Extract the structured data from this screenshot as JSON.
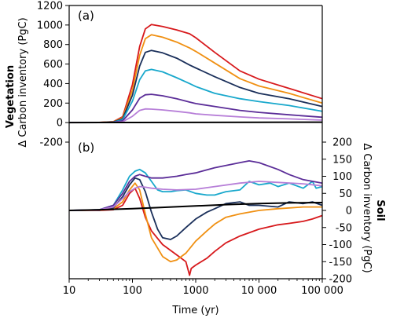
{
  "figure": {
    "xlabel": "Time (yr)",
    "x_tick_labels": [
      "10",
      "100",
      "1000",
      "10 000",
      "100 000"
    ],
    "panel_a_label": "(a)",
    "panel_b_label": "(b)",
    "left_axis_title_bold": "Vegetation",
    "left_axis_title": "Δ Carbon inventory (PgC)",
    "right_axis_title_bold": "Soil",
    "right_axis_title": "Δ Carbon inventory (PgC)",
    "left_tick_labels": [
      "1200",
      "1000",
      "800",
      "600",
      "400",
      "200",
      "0",
      "-200"
    ],
    "right_tick_labels": [
      "200",
      "150",
      "100",
      "50",
      "0",
      "-50",
      "-100",
      "-150",
      "-200"
    ]
  },
  "chart_data": [
    {
      "panel": "a",
      "type": "line",
      "xscale": "log",
      "xlim": [
        10,
        100000
      ],
      "ylim": [
        -200,
        1200
      ],
      "grid": false,
      "legend": "none",
      "series": [
        {
          "color": "#d7191c",
          "x": [
            10,
            30,
            50,
            70,
            100,
            130,
            160,
            200,
            300,
            500,
            800,
            1000,
            2000,
            5000,
            10000,
            30000,
            100000
          ],
          "y": [
            0,
            2,
            10,
            60,
            390,
            780,
            960,
            1005,
            985,
            950,
            910,
            870,
            720,
            530,
            445,
            350,
            245
          ]
        },
        {
          "color": "#f09012",
          "x": [
            10,
            30,
            50,
            70,
            100,
            130,
            160,
            200,
            300,
            500,
            800,
            1000,
            2000,
            5000,
            10000,
            30000,
            100000
          ],
          "y": [
            0,
            2,
            8,
            50,
            330,
            690,
            860,
            900,
            875,
            825,
            765,
            730,
            610,
            450,
            375,
            300,
            200
          ]
        },
        {
          "color": "#1a2f5a",
          "x": [
            10,
            30,
            50,
            70,
            100,
            130,
            160,
            200,
            300,
            500,
            800,
            1000,
            2000,
            5000,
            10000,
            30000,
            100000
          ],
          "y": [
            0,
            2,
            6,
            40,
            280,
            580,
            720,
            740,
            715,
            660,
            590,
            560,
            470,
            360,
            300,
            245,
            165
          ]
        },
        {
          "color": "#18a8cc",
          "x": [
            10,
            30,
            50,
            70,
            100,
            130,
            160,
            200,
            300,
            500,
            800,
            1000,
            2000,
            5000,
            10000,
            30000,
            100000
          ],
          "y": [
            0,
            1,
            4,
            30,
            220,
            440,
            530,
            545,
            520,
            460,
            400,
            370,
            300,
            245,
            215,
            175,
            115
          ]
        },
        {
          "color": "#5b2d98",
          "x": [
            10,
            30,
            50,
            70,
            100,
            130,
            160,
            200,
            300,
            500,
            800,
            1000,
            2000,
            5000,
            10000,
            30000,
            100000
          ],
          "y": [
            0,
            1,
            3,
            18,
            130,
            250,
            285,
            290,
            275,
            245,
            210,
            195,
            165,
            125,
            105,
            80,
            55
          ]
        },
        {
          "color": "#b77fd8",
          "x": [
            10,
            30,
            50,
            70,
            100,
            130,
            160,
            200,
            300,
            500,
            800,
            1000,
            2000,
            5000,
            10000,
            30000,
            100000
          ],
          "y": [
            0,
            0,
            2,
            8,
            65,
            125,
            140,
            138,
            130,
            115,
            100,
            90,
            75,
            58,
            48,
            38,
            25
          ]
        },
        {
          "color": "#000000",
          "x": [
            10,
            100,
            1000,
            10000,
            100000
          ],
          "y": [
            0,
            1,
            2,
            3,
            4
          ]
        }
      ]
    },
    {
      "panel": "b",
      "type": "line",
      "xscale": "log",
      "xlim": [
        10,
        100000
      ],
      "ylim": [
        -200,
        200
      ],
      "y_axis_side": "right",
      "grid": false,
      "legend": "none",
      "series": [
        {
          "color": "#d7191c",
          "x": [
            10,
            30,
            50,
            70,
            90,
            110,
            130,
            160,
            200,
            300,
            500,
            700,
            800,
            850,
            1000,
            1500,
            2000,
            3000,
            5000,
            10000,
            20000,
            30000,
            50000,
            70000,
            100000
          ],
          "y": [
            0,
            0,
            2,
            15,
            50,
            65,
            35,
            -20,
            -60,
            -100,
            -130,
            -150,
            -190,
            -170,
            -160,
            -140,
            -120,
            -95,
            -75,
            -55,
            -42,
            -38,
            -32,
            -25,
            -15
          ]
        },
        {
          "color": "#f09012",
          "x": [
            10,
            30,
            50,
            70,
            90,
            110,
            130,
            160,
            200,
            300,
            400,
            500,
            700,
            1000,
            1500,
            2000,
            3000,
            5000,
            10000,
            20000,
            50000,
            100000
          ],
          "y": [
            0,
            1,
            5,
            25,
            60,
            80,
            60,
            -10,
            -80,
            -135,
            -150,
            -145,
            -125,
            -90,
            -60,
            -40,
            -20,
            -10,
            0,
            5,
            10,
            10
          ]
        },
        {
          "color": "#1a2f5a",
          "x": [
            10,
            30,
            50,
            70,
            90,
            110,
            130,
            160,
            200,
            250,
            300,
            400,
            500,
            700,
            1000,
            1500,
            2000,
            3000,
            5000,
            7000,
            10000,
            20000,
            30000,
            50000,
            70000,
            100000
          ],
          "y": [
            0,
            1,
            8,
            40,
            75,
            95,
            90,
            55,
            -5,
            -55,
            -80,
            -85,
            -75,
            -50,
            -25,
            -5,
            5,
            20,
            25,
            15,
            15,
            10,
            25,
            20,
            25,
            15
          ]
        },
        {
          "color": "#18a8cc",
          "x": [
            10,
            30,
            50,
            70,
            90,
            110,
            130,
            160,
            200,
            250,
            300,
            400,
            500,
            700,
            1000,
            1500,
            2000,
            3000,
            5000,
            7000,
            10000,
            15000,
            20000,
            30000,
            50000,
            70000,
            80000,
            100000
          ],
          "y": [
            0,
            2,
            15,
            60,
            100,
            115,
            120,
            110,
            85,
            60,
            55,
            55,
            58,
            60,
            50,
            45,
            45,
            55,
            60,
            85,
            75,
            80,
            70,
            80,
            65,
            85,
            65,
            70
          ]
        },
        {
          "color": "#5b2d98",
          "x": [
            10,
            30,
            50,
            70,
            90,
            110,
            130,
            160,
            200,
            300,
            500,
            700,
            1000,
            2000,
            5000,
            7000,
            10000,
            20000,
            30000,
            50000,
            100000
          ],
          "y": [
            0,
            2,
            15,
            50,
            85,
            100,
            105,
            100,
            95,
            95,
            100,
            105,
            110,
            125,
            140,
            145,
            140,
            120,
            105,
            90,
            80
          ]
        },
        {
          "color": "#b77fd8",
          "x": [
            10,
            30,
            50,
            70,
            90,
            110,
            130,
            160,
            200,
            300,
            500,
            1000,
            2000,
            5000,
            10000,
            20000,
            50000,
            100000
          ],
          "y": [
            0,
            2,
            10,
            35,
            55,
            65,
            70,
            68,
            65,
            62,
            60,
            62,
            70,
            80,
            85,
            82,
            78,
            72
          ]
        },
        {
          "color": "#000000",
          "x": [
            10,
            30,
            100,
            300,
            1000,
            3000,
            10000,
            30000,
            100000
          ],
          "y": [
            0,
            2,
            5,
            9,
            13,
            17,
            20,
            22,
            23
          ]
        }
      ]
    }
  ]
}
